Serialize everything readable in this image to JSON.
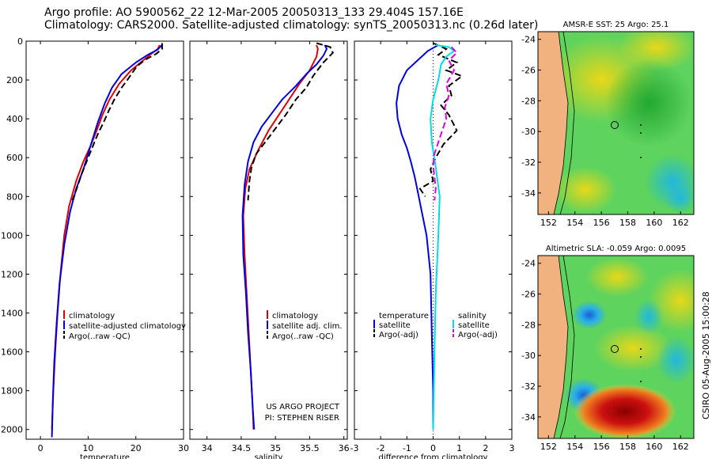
{
  "header": {
    "line1": "Argo profile: AO 5900562_22 12-Mar-2005 20050313_133 29.404S 157.16E",
    "line2": "Climatology: CARS2000. Satellite-adjusted climatology: synTS_20050313.nc (0.26d later)"
  },
  "side_label": "CSIRO 05-Aug-2005 15:00:28",
  "colors": {
    "climatology": "#dd0000",
    "satellite": "#0000dd",
    "argo": "#000000",
    "sal_sat": "#00dddd",
    "sal_argo": "#dd00dd"
  },
  "chart_data": [
    {
      "type": "line",
      "id": "temperature",
      "xlabel": "temperature",
      "ylabel": "",
      "xlim": [
        -3,
        30
      ],
      "ylim": [
        2050,
        0
      ],
      "xticks": [
        "0",
        "10",
        "20",
        "30"
      ],
      "yticks": [
        "0",
        "200",
        "400",
        "600",
        "800",
        "1000",
        "1200",
        "1400",
        "1600",
        "1800",
        "2000"
      ],
      "legend": [
        "climatology",
        "satellite-adjusted climatology",
        "Argo(..raw -QC)"
      ],
      "series": [
        {
          "name": "climatology",
          "points": [
            [
              25,
              20
            ],
            [
              24.6,
              40
            ],
            [
              23.5,
              60
            ],
            [
              21.5,
              100
            ],
            [
              19,
              150
            ],
            [
              16.5,
              220
            ],
            [
              14.5,
              300
            ],
            [
              13,
              380
            ],
            [
              11.8,
              460
            ],
            [
              10.5,
              540
            ],
            [
              9,
              620
            ],
            [
              7.5,
              720
            ],
            [
              6,
              850
            ],
            [
              5,
              1000
            ],
            [
              4.2,
              1200
            ],
            [
              3.6,
              1400
            ],
            [
              3.1,
              1600
            ],
            [
              2.7,
              1800
            ],
            [
              2.4,
              2000
            ]
          ]
        },
        {
          "name": "satellite-adjusted climatology",
          "points": [
            [
              25.5,
              20
            ],
            [
              24.5,
              45
            ],
            [
              22.5,
              70
            ],
            [
              20,
              110
            ],
            [
              17,
              170
            ],
            [
              15,
              240
            ],
            [
              13.5,
              320
            ],
            [
              12,
              420
            ],
            [
              11,
              500
            ],
            [
              10,
              580
            ],
            [
              9,
              660
            ],
            [
              7.5,
              760
            ],
            [
              6.2,
              880
            ],
            [
              5,
              1050
            ],
            [
              4,
              1250
            ],
            [
              3.4,
              1450
            ],
            [
              2.9,
              1650
            ],
            [
              2.6,
              1850
            ],
            [
              2.4,
              2040
            ]
          ]
        },
        {
          "name": "Argo(..raw -QC)",
          "points": [
            [
              25.5,
              10
            ],
            [
              25.5,
              40
            ],
            [
              24.3,
              65
            ],
            [
              22,
              95
            ],
            [
              20.2,
              130
            ],
            [
              18.5,
              190
            ],
            [
              17,
              240
            ],
            [
              15.5,
              300
            ],
            [
              14.3,
              360
            ],
            [
              13.2,
              420
            ],
            [
              12,
              480
            ],
            [
              11,
              540
            ],
            [
              10,
              600
            ],
            [
              8.7,
              680
            ],
            [
              7.6,
              760
            ],
            [
              6.7,
              820
            ]
          ]
        }
      ]
    },
    {
      "type": "line",
      "id": "salinity",
      "xlabel": "salinity",
      "xlim": [
        33.75,
        36.05
      ],
      "ylim": [
        2050,
        0
      ],
      "xticks": [
        "34",
        "34.5",
        "35",
        "35.5",
        "36"
      ],
      "legend": [
        "climatology",
        "satellite adj. clim.",
        "Argo(..raw -QC)"
      ],
      "series": [
        {
          "name": "climatology",
          "points": [
            [
              35.6,
              20
            ],
            [
              35.62,
              40
            ],
            [
              35.6,
              80
            ],
            [
              35.5,
              150
            ],
            [
              35.35,
              220
            ],
            [
              35.2,
              300
            ],
            [
              35.05,
              380
            ],
            [
              34.9,
              460
            ],
            [
              34.75,
              560
            ],
            [
              34.62,
              660
            ],
            [
              34.56,
              760
            ],
            [
              34.53,
              900
            ],
            [
              34.55,
              1100
            ],
            [
              34.58,
              1300
            ],
            [
              34.61,
              1500
            ],
            [
              34.64,
              1700
            ],
            [
              34.67,
              1900
            ],
            [
              34.68,
              2000
            ]
          ]
        },
        {
          "name": "satellite adj. clim.",
          "points": [
            [
              35.72,
              20
            ],
            [
              35.75,
              40
            ],
            [
              35.7,
              75
            ],
            [
              35.6,
              120
            ],
            [
              35.45,
              170
            ],
            [
              35.3,
              230
            ],
            [
              35.1,
              300
            ],
            [
              34.95,
              370
            ],
            [
              34.8,
              440
            ],
            [
              34.68,
              520
            ],
            [
              34.6,
              620
            ],
            [
              34.55,
              740
            ],
            [
              34.52,
              900
            ],
            [
              34.53,
              1100
            ],
            [
              34.57,
              1300
            ],
            [
              34.6,
              1500
            ],
            [
              34.64,
              1700
            ],
            [
              34.67,
              1900
            ],
            [
              34.69,
              2000
            ]
          ]
        },
        {
          "name": "Argo(..raw -QC)",
          "points": [
            [
              35.6,
              10
            ],
            [
              35.8,
              30
            ],
            [
              35.84,
              60
            ],
            [
              35.7,
              110
            ],
            [
              35.55,
              180
            ],
            [
              35.45,
              240
            ],
            [
              35.3,
              300
            ],
            [
              35.15,
              380
            ],
            [
              35.0,
              450
            ],
            [
              34.85,
              520
            ],
            [
              34.72,
              580
            ],
            [
              34.65,
              650
            ],
            [
              34.62,
              720
            ],
            [
              34.6,
              820
            ]
          ]
        }
      ],
      "annotation": [
        "US ARGO PROJECT",
        "PI: STEPHEN RISER"
      ]
    },
    {
      "type": "line",
      "id": "difference",
      "xlabel": "difference from climatology",
      "xlim": [
        -3,
        3
      ],
      "ylim": [
        2050,
        0
      ],
      "xticks": [
        "-3",
        "-2",
        "-1",
        "0",
        "1",
        "2",
        "3"
      ],
      "legend_temp": [
        "temperature",
        "satellite",
        "Argo(-adj)"
      ],
      "legend_sal": [
        "salinity",
        "satellite",
        "Argo(-adj)"
      ],
      "series": [
        {
          "name": "temperature satellite",
          "points": [
            [
              0.2,
              20
            ],
            [
              -0.2,
              50
            ],
            [
              -0.6,
              100
            ],
            [
              -1.0,
              150
            ],
            [
              -1.3,
              230
            ],
            [
              -1.4,
              320
            ],
            [
              -1.35,
              400
            ],
            [
              -1.2,
              480
            ],
            [
              -1.0,
              550
            ],
            [
              -0.85,
              620
            ],
            [
              -0.7,
              700
            ],
            [
              -0.55,
              800
            ],
            [
              -0.4,
              900
            ],
            [
              -0.25,
              1000
            ],
            [
              -0.1,
              1200
            ],
            [
              -0.05,
              1500
            ],
            [
              0,
              1800
            ],
            [
              0,
              2000
            ]
          ]
        },
        {
          "name": "temperature Argo(-adj)",
          "points": [
            [
              0,
              10
            ],
            [
              0.5,
              40
            ],
            [
              0.2,
              70
            ],
            [
              0.9,
              110
            ],
            [
              0.5,
              150
            ],
            [
              1.1,
              180
            ],
            [
              0.6,
              230
            ],
            [
              0.7,
              280
            ],
            [
              0.3,
              330
            ],
            [
              0.6,
              380
            ],
            [
              0.9,
              460
            ],
            [
              0.4,
              530
            ],
            [
              0.1,
              600
            ],
            [
              -0.1,
              660
            ],
            [
              0.0,
              720
            ],
            [
              -0.5,
              760
            ],
            [
              -0.3,
              800
            ]
          ]
        },
        {
          "name": "salinity satellite",
          "points": [
            [
              0.1,
              20
            ],
            [
              0.6,
              30
            ],
            [
              0.8,
              50
            ],
            [
              0.5,
              80
            ],
            [
              0.3,
              120
            ],
            [
              0.2,
              200
            ],
            [
              0.0,
              300
            ],
            [
              -0.1,
              400
            ],
            [
              -0.05,
              520
            ],
            [
              0.1,
              650
            ],
            [
              0.25,
              800
            ],
            [
              0.2,
              1000
            ],
            [
              0.1,
              1300
            ],
            [
              0.05,
              1600
            ],
            [
              0,
              2000
            ]
          ]
        },
        {
          "name": "salinity Argo(-adj)",
          "points": [
            [
              0.7,
              30
            ],
            [
              0.9,
              60
            ],
            [
              0.6,
              100
            ],
            [
              0.8,
              150
            ],
            [
              0.5,
              220
            ],
            [
              0.6,
              280
            ],
            [
              0.45,
              340
            ],
            [
              0.5,
              400
            ],
            [
              0.35,
              460
            ],
            [
              0.2,
              520
            ],
            [
              0.05,
              580
            ],
            [
              0,
              640
            ],
            [
              0.05,
              700
            ],
            [
              0.1,
              760
            ],
            [
              0.05,
              820
            ]
          ]
        }
      ]
    },
    {
      "type": "heatmap",
      "id": "sst_map",
      "title": "AMSR-E SST: 25 Argo: 25.1",
      "xticks": [
        "152",
        "154",
        "156",
        "158",
        "160",
        "162"
      ],
      "yticks": [
        "-24",
        "-26",
        "-28",
        "-30",
        "-32",
        "-34"
      ],
      "xlim": [
        151.2,
        163.0
      ],
      "ylim": [
        -23.5,
        -35.4
      ],
      "float_position": [
        157.16,
        -29.404
      ]
    },
    {
      "type": "heatmap",
      "id": "sla_map",
      "title": "Altimetric SLA: -0.059 Argo: 0.0095",
      "xticks": [
        "152",
        "154",
        "156",
        "158",
        "160",
        "162"
      ],
      "yticks": [
        "-24",
        "-26",
        "-28",
        "-30",
        "-32",
        "-34"
      ],
      "xlim": [
        151.2,
        163.0
      ],
      "ylim": [
        -23.5,
        -35.4
      ],
      "float_position": [
        157.16,
        -29.404
      ]
    }
  ]
}
